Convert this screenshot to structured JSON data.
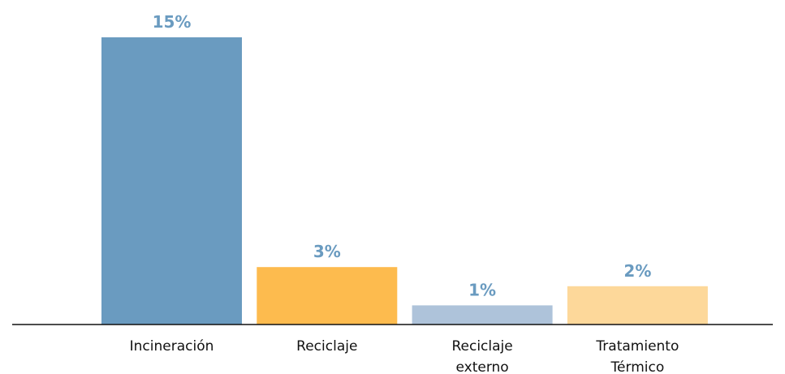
{
  "chart_data": {
    "type": "bar",
    "title": "",
    "xlabel": "",
    "ylabel": "",
    "ylim": [
      0,
      15
    ],
    "grid": false,
    "legend": "none",
    "categories": [
      [
        "Incineración"
      ],
      [
        "Reciclaje"
      ],
      [
        "Reciclaje",
        "externo"
      ],
      [
        "Tratamiento",
        "Térmico"
      ]
    ],
    "values": [
      15,
      3,
      1,
      2
    ],
    "value_labels": [
      "15%",
      "3%",
      "1%",
      "2%"
    ],
    "colors": [
      "#6a9bc0",
      "#fdbb4e",
      "#aec3da",
      "#fdd89a"
    ],
    "value_label_color": "#6a9bc0"
  }
}
